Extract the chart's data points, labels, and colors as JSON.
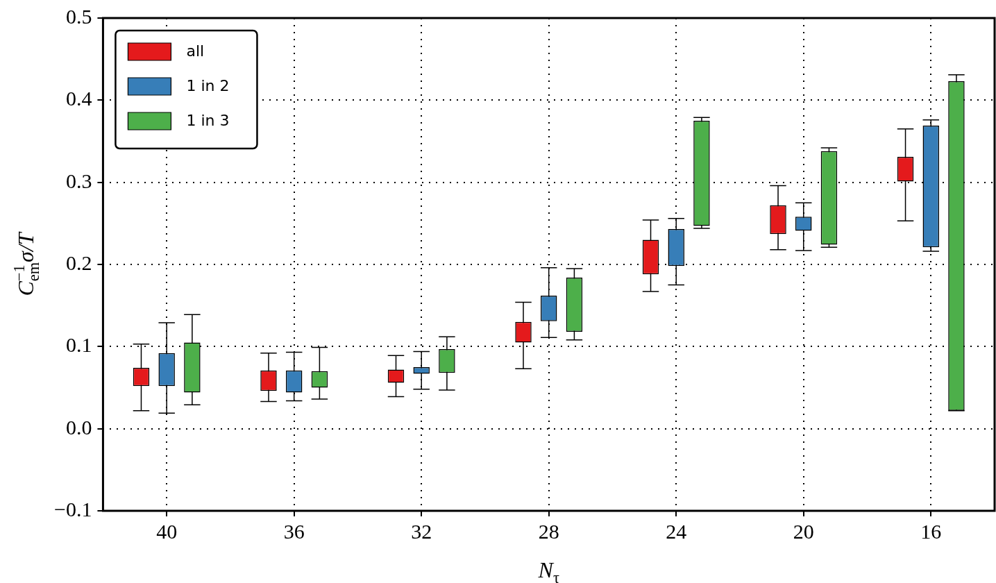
{
  "chart_data": {
    "type": "bar",
    "xlabel": "N$_{τ}$",
    "ylabel": "C$_{em}$$^{−1}$σ/T",
    "categories": [
      "40",
      "36",
      "32",
      "28",
      "24",
      "20",
      "16"
    ],
    "series": [
      {
        "name": "all",
        "color": "#e41a1c",
        "base": [
          0.052,
          0.046,
          0.056,
          0.105,
          0.188,
          0.237,
          0.301
        ],
        "values": [
          0.022,
          0.025,
          0.016,
          0.025,
          0.042,
          0.035,
          0.03
        ],
        "errors": [
          [
            0.022,
            0.103
          ],
          [
            0.033,
            0.092
          ],
          [
            0.039,
            0.089
          ],
          [
            0.073,
            0.154
          ],
          [
            0.167,
            0.254
          ],
          [
            0.218,
            0.296
          ],
          [
            0.253,
            0.365
          ]
        ]
      },
      {
        "name": "1 in 2",
        "color": "#377eb8",
        "base": [
          0.052,
          0.044,
          0.067,
          0.131,
          0.198,
          0.241,
          0.221
        ],
        "values": [
          0.04,
          0.027,
          0.008,
          0.031,
          0.045,
          0.017,
          0.148
        ],
        "errors": [
          [
            0.019,
            0.129
          ],
          [
            0.034,
            0.093
          ],
          [
            0.048,
            0.094
          ],
          [
            0.111,
            0.196
          ],
          [
            0.175,
            0.256
          ],
          [
            0.217,
            0.275
          ],
          [
            0.216,
            0.376
          ]
        ]
      },
      {
        "name": "1 in 3",
        "color": "#4daf4a",
        "base": [
          0.044,
          0.05,
          0.068,
          0.118,
          0.247,
          0.224,
          0.022
        ],
        "values": [
          0.061,
          0.02,
          0.029,
          0.066,
          0.128,
          0.114,
          0.401
        ],
        "errors": [
          [
            0.029,
            0.139
          ],
          [
            0.036,
            0.099
          ],
          [
            0.047,
            0.112
          ],
          [
            0.108,
            0.195
          ],
          [
            0.244,
            0.379
          ],
          [
            0.221,
            0.342
          ],
          [
            0.022,
            0.431
          ]
        ]
      }
    ],
    "ylim": [
      -0.1,
      0.5
    ],
    "yticks": [
      {
        "value": -0.1,
        "label": "−0.1"
      },
      {
        "value": 0,
        "label": "0.0"
      },
      {
        "value": 0.1,
        "label": "0.1"
      },
      {
        "value": 0.2,
        "label": "0.2"
      },
      {
        "value": 0.3,
        "label": "0.3"
      },
      {
        "value": 0.4,
        "label": "0.4"
      },
      {
        "value": 0.5,
        "label": "0.5"
      }
    ],
    "grid": true,
    "legend": "top left"
  }
}
